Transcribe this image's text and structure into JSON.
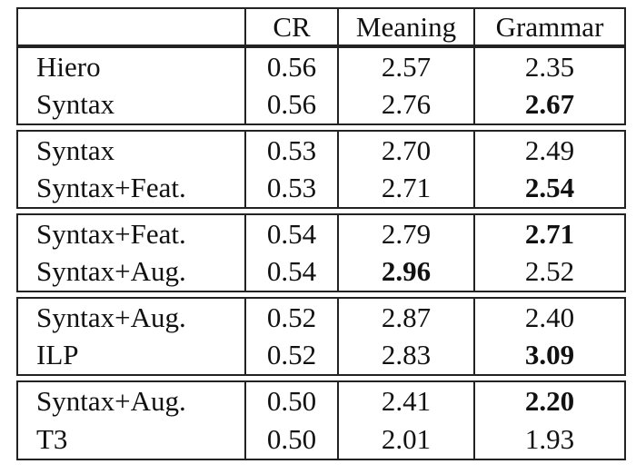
{
  "table": {
    "headers": {
      "method": "",
      "cr": "CR",
      "meaning": "Meaning",
      "grammar": "Grammar"
    },
    "groups": [
      {
        "rows": [
          {
            "method": "Hiero",
            "cr": "0.56",
            "meaning": "2.57",
            "grammar": "2.35"
          },
          {
            "method": "Syntax",
            "cr": "0.56",
            "meaning": "2.76",
            "grammar": "2.67"
          }
        ]
      },
      {
        "rows": [
          {
            "method": "Syntax",
            "cr": "0.53",
            "meaning": "2.70",
            "grammar": "2.49"
          },
          {
            "method": "Syntax+Feat.",
            "cr": "0.53",
            "meaning": "2.71",
            "grammar": "2.54"
          }
        ]
      },
      {
        "rows": [
          {
            "method": "Syntax+Feat.",
            "cr": "0.54",
            "meaning": "2.79",
            "grammar": "2.71"
          },
          {
            "method": "Syntax+Aug.",
            "cr": "0.54",
            "meaning": "2.96",
            "grammar": "2.52"
          }
        ]
      },
      {
        "rows": [
          {
            "method": "Syntax+Aug.",
            "cr": "0.52",
            "meaning": "2.87",
            "grammar": "2.40"
          },
          {
            "method": "ILP",
            "cr": "0.52",
            "meaning": "2.83",
            "grammar": "3.09"
          }
        ]
      },
      {
        "rows": [
          {
            "method": "Syntax+Aug.",
            "cr": "0.50",
            "meaning": "2.41",
            "grammar": "2.20"
          },
          {
            "method": "T3",
            "cr": "0.50",
            "meaning": "2.01",
            "grammar": "1.93"
          }
        ]
      }
    ]
  }
}
